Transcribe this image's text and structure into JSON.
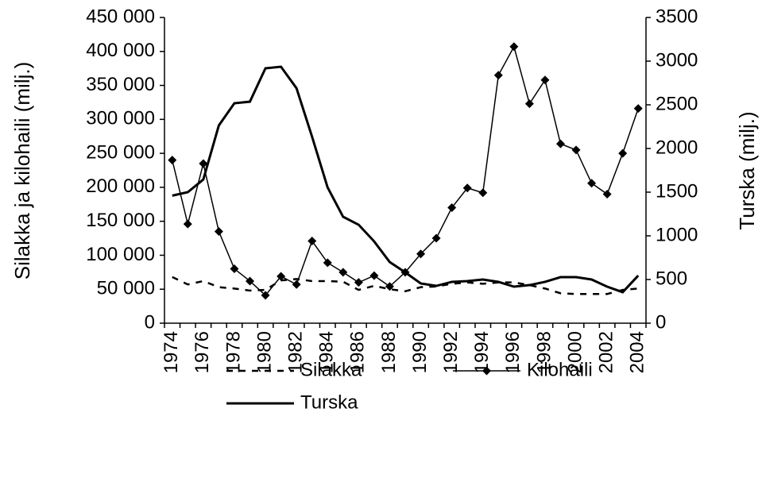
{
  "chart_data": {
    "type": "line",
    "categories": [
      "1974",
      null,
      "1976",
      null,
      "1978",
      null,
      "1980",
      null,
      "1982",
      null,
      "1984",
      null,
      "1986",
      null,
      "1988",
      null,
      "1990",
      null,
      "1992",
      null,
      "1994",
      null,
      "1996",
      null,
      "1998",
      null,
      "2000",
      null,
      "2002",
      null,
      "2004"
    ],
    "series": [
      {
        "name": "Silakka",
        "color": "#000000",
        "line_style": "dashed",
        "marker": "none",
        "values": [
          68000,
          57000,
          62000,
          53000,
          51000,
          48000,
          49000,
          63000,
          65000,
          62000,
          62000,
          61000,
          49000,
          55000,
          50000,
          47000,
          53000,
          54000,
          58000,
          60000,
          58000,
          60000,
          60000,
          56000,
          51000,
          44000,
          43000,
          43000,
          43000,
          49000,
          51000
        ]
      },
      {
        "name": "Kilohaili",
        "color": "#000000",
        "line_style": "solid",
        "marker": "diamond",
        "values": [
          240000,
          146000,
          235000,
          135000,
          80000,
          62000,
          41000,
          69000,
          57000,
          121000,
          89000,
          75000,
          60000,
          70000,
          54000,
          75000,
          102000,
          125000,
          170000,
          199000,
          192000,
          365000,
          407000,
          323000,
          358000,
          264000,
          255000,
          206000,
          190000,
          250000,
          316000
        ]
      },
      {
        "name": "Turska",
        "color": "#000000",
        "line_style": "solid",
        "marker": "none",
        "axis": "y2",
        "values": [
          1460,
          1500,
          1645,
          2264,
          2518,
          2536,
          2918,
          2936,
          2690,
          2136,
          1555,
          1218,
          1127,
          936,
          700,
          582,
          455,
          427,
          473,
          482,
          500,
          473,
          418,
          436,
          473,
          527,
          527,
          500,
          418,
          355,
          545
        ]
      }
    ],
    "ylabel": "Silakka ja kilohaili (milj.)",
    "y2label": "Turska (milj.)",
    "ylim": [
      0,
      450000
    ],
    "yticks": [
      0,
      {
        "value": 50000,
        "label": "50 000"
      },
      {
        "value": 100000,
        "label": "100 000"
      },
      {
        "value": 150000,
        "label": "150 000"
      },
      {
        "value": 200000,
        "label": "200 000"
      },
      {
        "value": 250000,
        "label": "250 000"
      },
      {
        "value": 300000,
        "label": "300 000"
      },
      {
        "value": 350000,
        "label": "350 000"
      },
      {
        "value": 400000,
        "label": "400 000"
      },
      {
        "value": 450000,
        "label": "450 000"
      }
    ],
    "y2lim": [
      0,
      3500
    ],
    "y2ticks": [
      0,
      500,
      1000,
      1500,
      2000,
      2500,
      3000,
      3500
    ],
    "legend": "bottom"
  }
}
